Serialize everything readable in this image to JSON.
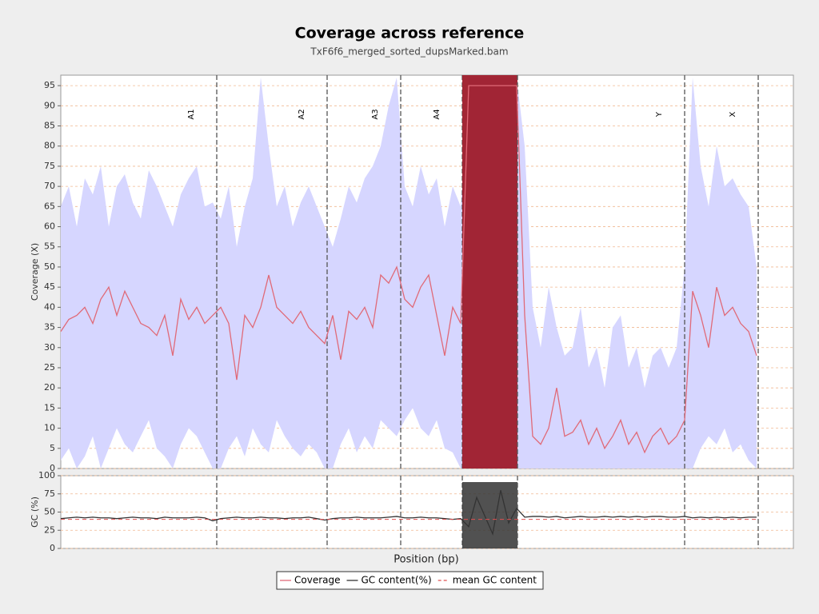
{
  "chart_data": {
    "type": "line",
    "title": "Coverage across reference",
    "subtitle": "TxF6f6_merged_sorted_dupsMarked.bam",
    "xlabel": "Position (bp)",
    "xlim": [
      0,
      91.6
    ],
    "grid": true,
    "panels": [
      {
        "ylabel": "Coverage (X)",
        "ylim": [
          0,
          97.6
        ],
        "yticks": [
          0,
          5,
          10,
          15,
          20,
          25,
          30,
          35,
          40,
          45,
          50,
          55,
          60,
          65,
          70,
          75,
          80,
          85,
          90,
          95
        ]
      },
      {
        "ylabel": "GC (%)",
        "ylim": [
          0,
          100
        ],
        "yticks": [
          0,
          25,
          50,
          75,
          100
        ]
      }
    ],
    "regions": [
      {
        "label": "A1",
        "end": 19.5
      },
      {
        "label": "A2",
        "end": 33.3
      },
      {
        "label": "A3",
        "end": 42.5
      },
      {
        "label": "A4",
        "end": 50.2
      },
      {
        "label": null,
        "end": 57.1,
        "fill": "#9e1b2a"
      },
      {
        "label": "Y",
        "end": 78
      },
      {
        "label": "X",
        "end": 87.2
      }
    ],
    "series": [
      {
        "name": "Coverage",
        "color": "#e06a78",
        "panel": 0,
        "band_color": "#d6d6ff",
        "values": [
          34,
          37,
          38,
          40,
          36,
          42,
          45,
          38,
          44,
          40,
          36,
          35,
          33,
          38,
          28,
          42,
          37,
          40,
          36,
          38,
          40,
          36,
          22,
          38,
          35,
          40,
          48,
          40,
          38,
          36,
          39,
          35,
          33,
          31,
          38,
          27,
          39,
          37,
          40,
          35,
          48,
          46,
          50,
          42,
          40,
          45,
          48,
          38,
          28,
          40,
          36,
          95,
          95,
          95,
          95,
          95,
          95,
          95,
          38,
          8,
          6,
          10,
          20,
          8,
          9,
          12,
          6,
          10,
          5,
          8,
          12,
          6,
          9,
          4,
          8,
          10,
          6,
          8,
          12,
          44,
          38,
          30,
          45,
          38,
          40,
          36,
          34,
          28
        ],
        "band_upper": [
          65,
          70,
          60,
          72,
          68,
          75,
          60,
          70,
          73,
          66,
          62,
          74,
          70,
          65,
          60,
          68,
          72,
          75,
          65,
          66,
          62,
          70,
          55,
          65,
          72,
          97,
          80,
          65,
          70,
          60,
          66,
          70,
          65,
          60,
          55,
          62,
          70,
          66,
          72,
          75,
          80,
          90,
          97,
          70,
          65,
          75,
          68,
          72,
          60,
          70,
          65,
          97,
          97,
          97,
          97,
          97,
          97,
          97,
          80,
          40,
          30,
          45,
          35,
          28,
          30,
          40,
          25,
          30,
          20,
          35,
          38,
          25,
          30,
          20,
          28,
          30,
          25,
          30,
          50,
          97,
          75,
          65,
          80,
          70,
          72,
          68,
          65,
          50
        ],
        "band_lower": [
          2,
          5,
          0,
          3,
          8,
          0,
          5,
          10,
          6,
          4,
          8,
          12,
          5,
          3,
          0,
          6,
          10,
          8,
          4,
          0,
          0,
          5,
          8,
          3,
          10,
          6,
          4,
          12,
          8,
          5,
          3,
          6,
          4,
          0,
          0,
          6,
          10,
          4,
          8,
          5,
          12,
          10,
          8,
          12,
          15,
          10,
          8,
          12,
          5,
          4,
          0,
          0,
          0,
          0,
          0,
          0,
          0,
          0,
          0,
          0,
          0,
          0,
          0,
          0,
          0,
          0,
          0,
          0,
          0,
          0,
          0,
          0,
          0,
          0,
          0,
          0,
          0,
          0,
          0,
          0,
          5,
          8,
          6,
          10,
          4,
          6,
          2,
          0
        ]
      },
      {
        "name": "GC content(%)",
        "color": "#333333",
        "panel": 1,
        "values": [
          41,
          42,
          43,
          42,
          43,
          42,
          42,
          41,
          42,
          43,
          42,
          42,
          41,
          43,
          42,
          42,
          42,
          43,
          42,
          38,
          41,
          42,
          43,
          42,
          42,
          43,
          42,
          42,
          41,
          42,
          42,
          43,
          41,
          39,
          41,
          42,
          42,
          43,
          42,
          42,
          42,
          43,
          44,
          42,
          42,
          43,
          42,
          42,
          41,
          40,
          41,
          30,
          70,
          45,
          20,
          80,
          35,
          55,
          43,
          44,
          44,
          43,
          44,
          42,
          43,
          44,
          43,
          43,
          44,
          43,
          44,
          43,
          44,
          43,
          44,
          44,
          43,
          43,
          44,
          42,
          43,
          42,
          43,
          42,
          43,
          42,
          43,
          43
        ]
      },
      {
        "name": "mean GC content",
        "color": "#e05050",
        "panel": 1,
        "dashed": true,
        "value": 40
      }
    ]
  }
}
